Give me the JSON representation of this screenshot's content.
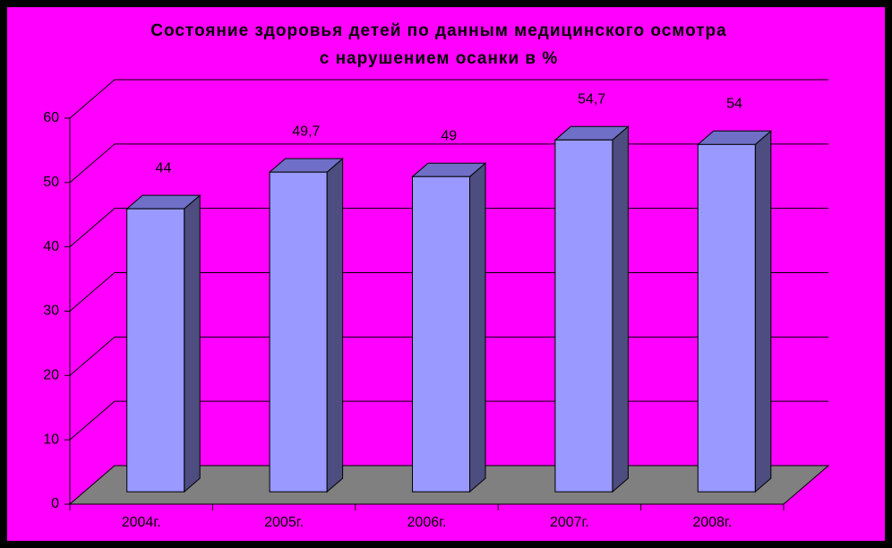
{
  "chart_data": {
    "type": "bar3d",
    "title": [
      "Состояние здоровья детей по данным медицинского осмотра",
      "с нарушением осанки в %"
    ],
    "categories": [
      "2004г.",
      "2005г.",
      "2006г.",
      "2007г.",
      "2008г."
    ],
    "values": [
      44,
      49.7,
      49,
      54.7,
      54
    ],
    "value_labels": [
      "44",
      "49,7",
      "49",
      "54,7",
      "54"
    ],
    "color": "#9999ff",
    "ylim": [
      0,
      60
    ],
    "yticks": [
      0,
      10,
      20,
      30,
      40,
      50,
      60
    ],
    "grid": true
  }
}
